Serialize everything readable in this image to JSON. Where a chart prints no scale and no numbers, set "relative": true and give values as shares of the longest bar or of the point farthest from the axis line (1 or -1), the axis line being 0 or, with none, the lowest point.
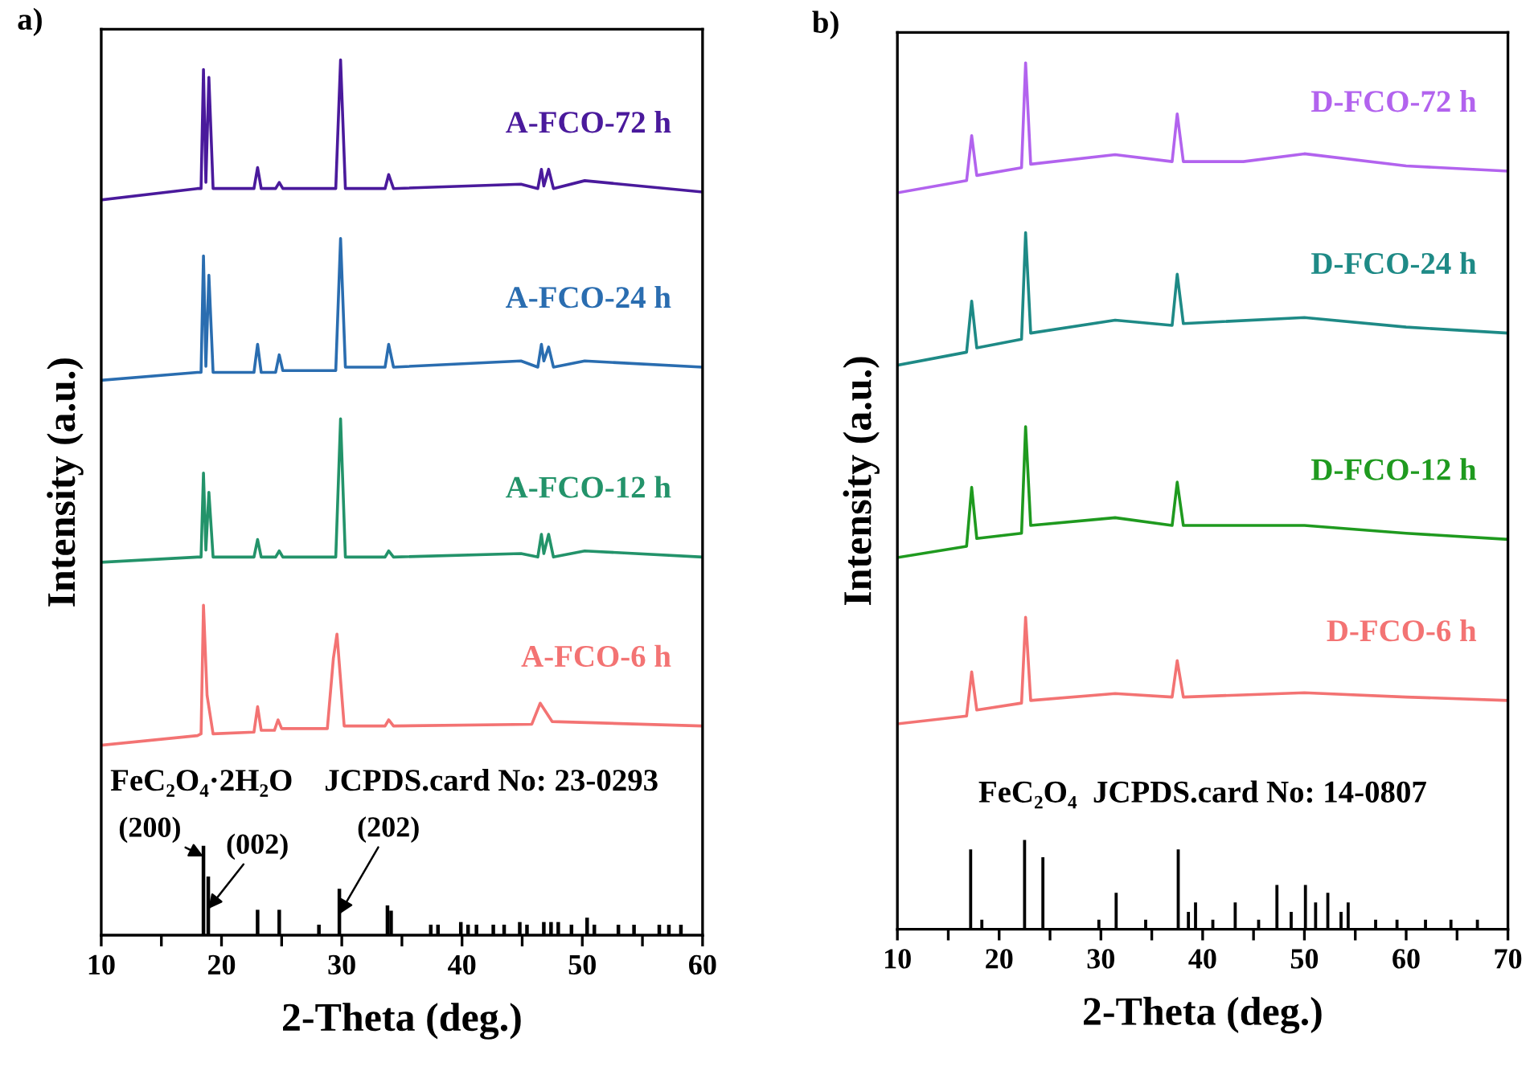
{
  "chart_data": [
    {
      "type": "line",
      "title": "a)",
      "xlabel": "2-Theta (deg.)",
      "ylabel": "Intensity (a.u.)",
      "relative": true,
      "tick_labels": "x",
      "xlim": [
        10,
        60
      ],
      "xticks": [
        10,
        {
          "value": 15,
          "label": null
        },
        20,
        {
          "value": 25,
          "label": null
        },
        30,
        {
          "value": 35,
          "label": null
        },
        40,
        {
          "value": 45,
          "label": null
        },
        50,
        {
          "value": 55,
          "label": null
        },
        60
      ],
      "series": [
        {
          "name": "A-FCO-72 h",
          "color": "#4a1a9c",
          "x": [
            10,
            18.0,
            18.3,
            18.5,
            18.7,
            18.95,
            19.3,
            22.7,
            23.0,
            23.3,
            24.5,
            24.8,
            25.1,
            29.5,
            29.9,
            30.3,
            33.6,
            33.9,
            34.3,
            44.9,
            46.3,
            46.6,
            46.8,
            47.2,
            47.6,
            50.2,
            60
          ],
          "values": [
            0.84,
            0.853,
            0.853,
            0.989,
            0.86,
            0.98,
            0.853,
            0.853,
            0.877,
            0.853,
            0.853,
            0.86,
            0.853,
            0.853,
            1.0,
            0.853,
            0.853,
            0.869,
            0.853,
            0.858,
            0.853,
            0.875,
            0.856,
            0.875,
            0.853,
            0.862,
            0.849
          ]
        },
        {
          "name": "A-FCO-24 h",
          "color": "#2a6db0",
          "x": [
            10,
            18.0,
            18.3,
            18.5,
            18.7,
            18.95,
            19.3,
            22.7,
            23.0,
            23.3,
            24.5,
            24.8,
            25.1,
            29.5,
            29.9,
            30.3,
            33.6,
            33.9,
            34.3,
            44.9,
            46.3,
            46.6,
            46.8,
            47.2,
            47.6,
            50.2,
            60
          ],
          "values": [
            0.634,
            0.643,
            0.643,
            0.776,
            0.65,
            0.754,
            0.643,
            0.643,
            0.675,
            0.643,
            0.643,
            0.663,
            0.645,
            0.645,
            0.796,
            0.649,
            0.649,
            0.675,
            0.649,
            0.656,
            0.649,
            0.675,
            0.656,
            0.672,
            0.649,
            0.656,
            0.649
          ]
        },
        {
          "name": "A-FCO-12 h",
          "color": "#23936a",
          "x": [
            10,
            18.0,
            18.3,
            18.5,
            18.7,
            18.95,
            19.3,
            22.7,
            23.0,
            23.3,
            24.5,
            24.8,
            25.1,
            29.5,
            29.9,
            30.3,
            33.6,
            33.9,
            34.3,
            44.9,
            46.3,
            46.6,
            46.8,
            47.2,
            47.6,
            50.2,
            60
          ],
          "values": [
            0.426,
            0.432,
            0.432,
            0.528,
            0.44,
            0.506,
            0.432,
            0.432,
            0.452,
            0.432,
            0.432,
            0.439,
            0.432,
            0.432,
            0.59,
            0.432,
            0.432,
            0.439,
            0.432,
            0.436,
            0.432,
            0.458,
            0.436,
            0.458,
            0.432,
            0.439,
            0.432
          ]
        },
        {
          "name": "A-FCO-6 h",
          "color": "#f37373",
          "x": [
            10,
            18.0,
            18.3,
            18.5,
            18.8,
            19.3,
            22.7,
            23.0,
            23.3,
            24.4,
            24.7,
            25.0,
            28.8,
            29.3,
            29.6,
            30.2,
            33.6,
            33.9,
            34.3,
            45.8,
            46.5,
            47.5,
            60
          ],
          "values": [
            0.217,
            0.228,
            0.23,
            0.377,
            0.274,
            0.23,
            0.232,
            0.261,
            0.234,
            0.234,
            0.246,
            0.236,
            0.236,
            0.316,
            0.344,
            0.239,
            0.239,
            0.246,
            0.239,
            0.241,
            0.265,
            0.244,
            0.239
          ]
        },
        {
          "type": "bar",
          "color": "#000000",
          "x": [
            18.5,
            18.9,
            23.0,
            24.8,
            28.1,
            29.8,
            33.8,
            34.1,
            37.4,
            38.0,
            39.9,
            40.5,
            41.2,
            42.6,
            43.5,
            44.8,
            45.4,
            46.8,
            47.4,
            48.0,
            49.1,
            50.4,
            51.0,
            53.0,
            54.3,
            56.4,
            57.2,
            58.2
          ],
          "values": [
            0.102,
            0.067,
            0.029,
            0.029,
            0.012,
            0.053,
            0.034,
            0.028,
            0.012,
            0.012,
            0.015,
            0.012,
            0.012,
            0.012,
            0.012,
            0.015,
            0.012,
            0.015,
            0.015,
            0.015,
            0.012,
            0.02,
            0.012,
            0.012,
            0.012,
            0.012,
            0.012,
            0.012
          ]
        }
      ],
      "annotations": [
        "FeC₂O₄·2H₂O    JCPDS.card No: 23-0293",
        {
          "text": "(200)",
          "x": 18.5,
          "y": 0.09
        },
        {
          "text": "(002)",
          "x": 18.9,
          "y": 0.03
        },
        {
          "text": "(202)",
          "x": 29.8,
          "y": 0.024
        }
      ]
    },
    {
      "type": "line",
      "title": "b)",
      "xlabel": "2-Theta (deg.)",
      "ylabel": "Intensity (a.u.)",
      "relative": true,
      "tick_labels": "x",
      "xlim": [
        10,
        70
      ],
      "xticks": [
        10,
        {
          "value": 15,
          "label": null
        },
        20,
        {
          "value": 25,
          "label": null
        },
        30,
        {
          "value": 35,
          "label": null
        },
        40,
        {
          "value": 45,
          "label": null
        },
        50,
        {
          "value": 55,
          "label": null
        },
        60,
        {
          "value": 65,
          "label": null
        },
        70
      ],
      "series": [
        {
          "name": "D-FCO-72 h",
          "color": "#b263ee",
          "x": [
            10,
            16.8,
            17.3,
            17.8,
            22.2,
            22.6,
            23.1,
            31.4,
            37.0,
            37.5,
            38.1,
            44,
            50,
            60,
            70
          ],
          "values": [
            0.85,
            0.864,
            0.916,
            0.87,
            0.879,
            1.0,
            0.883,
            0.894,
            0.886,
            0.941,
            0.886,
            0.886,
            0.895,
            0.881,
            0.875
          ]
        },
        {
          "name": "D-FCO-24 h",
          "color": "#1e8a86",
          "x": [
            10,
            16.8,
            17.3,
            17.8,
            22.2,
            22.6,
            23.1,
            31.4,
            37.0,
            37.5,
            38.1,
            50,
            60,
            70
          ],
          "values": [
            0.651,
            0.666,
            0.725,
            0.671,
            0.681,
            0.804,
            0.688,
            0.703,
            0.697,
            0.756,
            0.699,
            0.706,
            0.695,
            0.688
          ]
        },
        {
          "name": "D-FCO-12 h",
          "color": "#1f9a1f",
          "x": [
            10,
            16.8,
            17.3,
            17.8,
            22.2,
            22.6,
            23.1,
            31.4,
            37.0,
            37.5,
            38.1,
            50,
            60,
            70
          ],
          "values": [
            0.429,
            0.442,
            0.51,
            0.451,
            0.457,
            0.58,
            0.466,
            0.475,
            0.466,
            0.516,
            0.466,
            0.466,
            0.457,
            0.45
          ]
        },
        {
          "name": "D-FCO-6 h",
          "color": "#f37373",
          "x": [
            10,
            16.8,
            17.3,
            17.8,
            22.2,
            22.6,
            23.1,
            31.4,
            37.0,
            37.5,
            38.1,
            50,
            60,
            70
          ],
          "values": [
            0.237,
            0.246,
            0.297,
            0.253,
            0.261,
            0.36,
            0.264,
            0.272,
            0.268,
            0.31,
            0.268,
            0.273,
            0.268,
            0.264
          ]
        },
        {
          "type": "bar",
          "color": "#000000",
          "x": [
            17.2,
            18.3,
            22.5,
            24.3,
            29.8,
            31.5,
            34.4,
            37.6,
            38.6,
            39.3,
            41.0,
            43.2,
            45.5,
            47.3,
            48.7,
            50.1,
            51.1,
            52.3,
            53.6,
            54.3,
            57.0,
            59.1,
            61.9,
            64.4,
            67.0
          ],
          "values": [
            0.092,
            0.011,
            0.103,
            0.083,
            0.011,
            0.042,
            0.011,
            0.092,
            0.02,
            0.031,
            0.011,
            0.031,
            0.011,
            0.051,
            0.02,
            0.051,
            0.031,
            0.042,
            0.02,
            0.031,
            0.011,
            0.011,
            0.011,
            0.011,
            0.011
          ]
        }
      ],
      "annotations": [
        "FeC₂O₄  JCPDS.card No: 14-0807"
      ]
    }
  ]
}
